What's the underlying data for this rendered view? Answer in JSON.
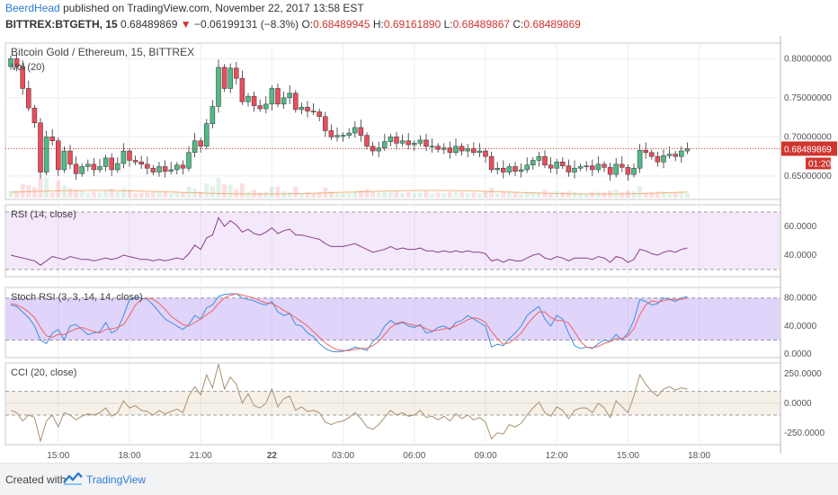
{
  "header": {
    "author": "BeerdHead",
    "published": "published on TradingView.com, November 22, 2017 13:58 EST",
    "symbol": "BITTREX:BTGETH, 15",
    "last": "0.68489869",
    "change": "−0.06199131 (−8.3%)",
    "o_label": "O:",
    "o_value": "0.68489945",
    "h_label": "H:",
    "h_value": "0.69161890",
    "l_label": "L:",
    "l_value": "0.68489867",
    "c_label": "C:",
    "c_value": "0.68489869"
  },
  "footer": {
    "created": "Created with",
    "brand": "TradingView"
  },
  "colors": {
    "up": "#53b987",
    "down": "#eb4d5c",
    "price_line": "#d0352f",
    "rsi_line": "#8e3b86",
    "stoch_k": "#3d8fe0",
    "stoch_d": "#f06262",
    "cci_line": "#a89070",
    "ma_line": "#f0a35a"
  },
  "chart_data": [
    {
      "type": "candlestick",
      "title": "Bitcoin Gold / Ethereum, 15, BITTREX",
      "volume_label": "Vol (20)",
      "ylim": [
        0.62,
        0.82
      ],
      "y_ticks": [
        "0.80000000",
        "0.75000000",
        "0.70000000",
        "0.65000000"
      ],
      "last_price_label": "0.68489869",
      "countdown_label": "01:20",
      "x_tick_labels": [
        "15:00",
        "18:00",
        "21:00",
        "22",
        "03:00",
        "06:00",
        "09:00",
        "12:00",
        "15:00",
        "18:00"
      ],
      "x_tick_index": [
        8,
        20,
        32,
        44,
        56,
        68,
        80,
        92,
        104,
        116
      ],
      "close": [
        0.8,
        0.79,
        0.762,
        0.737,
        0.718,
        0.655,
        0.7,
        0.695,
        0.658,
        0.682,
        0.665,
        0.653,
        0.662,
        0.665,
        0.658,
        0.662,
        0.673,
        0.658,
        0.666,
        0.682,
        0.67,
        0.668,
        0.665,
        0.66,
        0.655,
        0.662,
        0.656,
        0.658,
        0.664,
        0.66,
        0.68,
        0.695,
        0.688,
        0.717,
        0.739,
        0.789,
        0.762,
        0.788,
        0.775,
        0.745,
        0.752,
        0.74,
        0.736,
        0.742,
        0.762,
        0.742,
        0.75,
        0.756,
        0.735,
        0.738,
        0.733,
        0.732,
        0.726,
        0.708,
        0.7,
        0.702,
        0.702,
        0.705,
        0.712,
        0.702,
        0.688,
        0.682,
        0.686,
        0.694,
        0.7,
        0.692,
        0.695,
        0.69,
        0.692,
        0.696,
        0.688,
        0.688,
        0.684,
        0.686,
        0.68,
        0.688,
        0.682,
        0.685,
        0.68,
        0.682,
        0.675,
        0.658,
        0.66,
        0.655,
        0.662,
        0.656,
        0.658,
        0.664,
        0.67,
        0.675,
        0.664,
        0.66,
        0.668,
        0.663,
        0.655,
        0.66,
        0.662,
        0.663,
        0.658,
        0.665,
        0.661,
        0.652,
        0.665,
        0.661,
        0.652,
        0.66,
        0.683,
        0.68,
        0.675,
        0.668,
        0.676,
        0.678,
        0.675,
        0.682,
        0.685
      ],
      "open": [
        0.79,
        0.8,
        0.79,
        0.762,
        0.737,
        0.718,
        0.655,
        0.7,
        0.695,
        0.658,
        0.682,
        0.665,
        0.653,
        0.662,
        0.665,
        0.658,
        0.662,
        0.673,
        0.658,
        0.666,
        0.682,
        0.67,
        0.668,
        0.665,
        0.66,
        0.655,
        0.662,
        0.656,
        0.658,
        0.664,
        0.66,
        0.68,
        0.695,
        0.688,
        0.717,
        0.739,
        0.789,
        0.762,
        0.788,
        0.775,
        0.745,
        0.752,
        0.74,
        0.736,
        0.742,
        0.762,
        0.742,
        0.75,
        0.756,
        0.735,
        0.738,
        0.733,
        0.732,
        0.726,
        0.708,
        0.7,
        0.702,
        0.702,
        0.705,
        0.712,
        0.702,
        0.688,
        0.682,
        0.686,
        0.694,
        0.7,
        0.692,
        0.695,
        0.69,
        0.692,
        0.696,
        0.688,
        0.688,
        0.684,
        0.686,
        0.68,
        0.688,
        0.682,
        0.685,
        0.68,
        0.682,
        0.675,
        0.658,
        0.66,
        0.655,
        0.662,
        0.656,
        0.658,
        0.664,
        0.67,
        0.675,
        0.664,
        0.66,
        0.668,
        0.663,
        0.655,
        0.66,
        0.662,
        0.663,
        0.658,
        0.665,
        0.661,
        0.652,
        0.665,
        0.661,
        0.652,
        0.66,
        0.683,
        0.68,
        0.675,
        0.668,
        0.676,
        0.678,
        0.675,
        0.682
      ]
    },
    {
      "type": "line",
      "title": "RSI (14, close)",
      "ylim": [
        25,
        75
      ],
      "band": [
        30,
        70
      ],
      "y_ticks": [
        "60.0000",
        "40.0000"
      ],
      "values": [
        40,
        39,
        38,
        37,
        36,
        33,
        36,
        39,
        38,
        37,
        39,
        38,
        37,
        37,
        36,
        37,
        38,
        37,
        38,
        40,
        39,
        38,
        37,
        37,
        36,
        37,
        36,
        37,
        38,
        37,
        41,
        47,
        44,
        52,
        54,
        66,
        60,
        64,
        61,
        56,
        58,
        55,
        54,
        56,
        59,
        55,
        57,
        58,
        54,
        54,
        53,
        52,
        51,
        48,
        46,
        46,
        46,
        47,
        48,
        46,
        44,
        42,
        43,
        44,
        46,
        44,
        45,
        44,
        44,
        45,
        43,
        43,
        42,
        43,
        42,
        43,
        42,
        43,
        42,
        42,
        41,
        36,
        37,
        35,
        37,
        36,
        36,
        38,
        40,
        41,
        38,
        37,
        39,
        38,
        36,
        38,
        38,
        38,
        37,
        39,
        38,
        35,
        39,
        38,
        35,
        37,
        44,
        43,
        41,
        40,
        42,
        43,
        42,
        44,
        45
      ]
    },
    {
      "type": "line",
      "title": "Stoch RSI (3, 3, 14, 14, close)",
      "ylim": [
        -5,
        95
      ],
      "band": [
        20,
        80
      ],
      "y_ticks": [
        "80.0000",
        "40.0000",
        "0.0000"
      ],
      "series": [
        {
          "values": [
            70,
            68,
            60,
            52,
            40,
            20,
            15,
            30,
            35,
            20,
            40,
            42,
            35,
            28,
            30,
            32,
            45,
            30,
            35,
            55,
            78,
            80,
            80,
            78,
            70,
            60,
            50,
            45,
            40,
            35,
            42,
            55,
            50,
            66,
            70,
            82,
            85,
            86,
            86,
            80,
            78,
            76,
            72,
            70,
            75,
            60,
            55,
            58,
            42,
            40,
            30,
            25,
            15,
            8,
            4,
            3,
            4,
            6,
            10,
            8,
            5,
            18,
            25,
            40,
            48,
            42,
            45,
            40,
            38,
            42,
            30,
            32,
            38,
            40,
            35,
            45,
            48,
            55,
            50,
            45,
            40,
            10,
            14,
            12,
            22,
            30,
            40,
            55,
            62,
            68,
            50,
            40,
            55,
            50,
            30,
            12,
            8,
            10,
            8,
            15,
            20,
            18,
            28,
            20,
            30,
            48,
            78,
            75,
            70,
            72,
            80,
            78,
            75,
            80,
            82
          ]
        },
        {
          "values": [
            72,
            70,
            66,
            60,
            52,
            38,
            26,
            24,
            28,
            28,
            32,
            36,
            38,
            35,
            32,
            30,
            35,
            36,
            38,
            42,
            55,
            70,
            78,
            80,
            78,
            72,
            64,
            54,
            48,
            42,
            40,
            45,
            50,
            56,
            62,
            72,
            80,
            84,
            86,
            84,
            82,
            80,
            76,
            73,
            72,
            68,
            62,
            58,
            52,
            46,
            40,
            32,
            24,
            16,
            10,
            6,
            5,
            5,
            7,
            8,
            8,
            12,
            18,
            28,
            38,
            44,
            46,
            43,
            41,
            40,
            36,
            33,
            34,
            36,
            37,
            40,
            44,
            49,
            52,
            50,
            45,
            32,
            22,
            14,
            16,
            22,
            30,
            42,
            52,
            60,
            60,
            52,
            48,
            48,
            44,
            32,
            18,
            10,
            9,
            11,
            15,
            18,
            22,
            22,
            26,
            36,
            56,
            70,
            76,
            74,
            76,
            78,
            78,
            78,
            80
          ]
        }
      ]
    },
    {
      "type": "line",
      "title": "CCI (20, close)",
      "ylim": [
        -350,
        340
      ],
      "band": [
        -100,
        100
      ],
      "y_ticks": [
        "250.0000",
        "0.0000",
        "-250.0000"
      ],
      "values": [
        -60,
        -80,
        -150,
        -100,
        -120,
        -320,
        -150,
        -100,
        -200,
        -80,
        -100,
        -140,
        -110,
        -90,
        -100,
        -80,
        -40,
        -110,
        -80,
        20,
        -40,
        -20,
        -60,
        -70,
        -100,
        -60,
        -90,
        -70,
        -50,
        -80,
        60,
        140,
        70,
        240,
        130,
        330,
        120,
        220,
        160,
        0,
        80,
        -20,
        -40,
        0,
        120,
        -30,
        40,
        60,
        -60,
        -30,
        -70,
        -60,
        -80,
        -160,
        -180,
        -160,
        -150,
        -120,
        -80,
        -130,
        -200,
        -220,
        -180,
        -120,
        -60,
        -100,
        -80,
        -110,
        -100,
        -60,
        -120,
        -110,
        -140,
        -110,
        -150,
        -90,
        -130,
        -100,
        -140,
        -120,
        -160,
        -300,
        -250,
        -260,
        -180,
        -200,
        -170,
        -100,
        -40,
        10,
        -80,
        -110,
        -30,
        -60,
        -130,
        -60,
        -40,
        -40,
        -80,
        0,
        -40,
        -120,
        20,
        -30,
        -80,
        60,
        240,
        160,
        100,
        60,
        120,
        140,
        110,
        130,
        120
      ]
    }
  ]
}
